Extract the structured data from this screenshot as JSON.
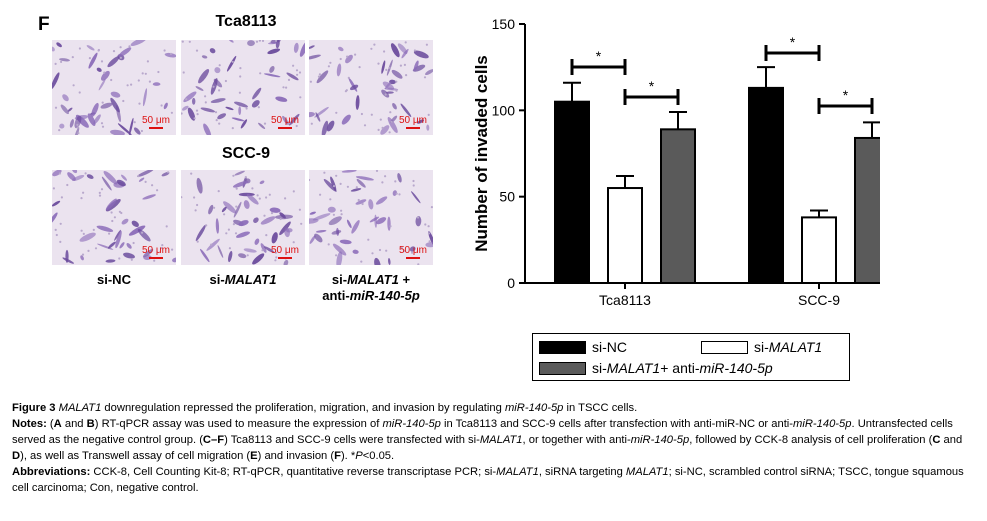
{
  "figure": {
    "panel_letter": "F",
    "microscopy": {
      "rows": [
        {
          "title": "Tca8113",
          "scale_label": "50 μm"
        },
        {
          "title": "SCC-9",
          "scale_label": "50 μm"
        }
      ],
      "columns": [
        {
          "line1_pre": "si-NC",
          "line1_italic": "",
          "line1_post": "",
          "line2_pre": "",
          "line2_italic": ""
        },
        {
          "line1_pre": "si-",
          "line1_italic": "MALAT1",
          "line1_post": "",
          "line2_pre": "",
          "line2_italic": ""
        },
        {
          "line1_pre": "si-",
          "line1_italic": "MALAT1",
          "line1_post": " +",
          "line2_pre": "anti-",
          "line2_italic": "miR-140-5p"
        }
      ]
    },
    "legend": {
      "si_nc": "si-NC",
      "si_malat1_pre": "si-",
      "si_malat1_italic": "MALAT1",
      "combo_pre": "si-",
      "combo_italic1": "MALAT1",
      "combo_mid": " + anti-",
      "combo_italic2": "miR-140-5p"
    }
  },
  "chart_data": {
    "type": "bar",
    "categories": [
      "Tca8113",
      "SCC-9"
    ],
    "series": [
      {
        "name": "si-NC",
        "values": [
          105,
          113
        ],
        "errors": [
          11,
          12
        ],
        "color": "#000000"
      },
      {
        "name": "si-MALAT1",
        "values": [
          55,
          38
        ],
        "errors": [
          7,
          4
        ],
        "color": "#ffffff"
      },
      {
        "name": "si-MALAT1 + anti-miR-140-5p",
        "values": [
          89,
          84
        ],
        "errors": [
          10,
          9
        ],
        "color": "#5a5a5a"
      }
    ],
    "ylabel": "Number of invaded cells",
    "xlabel": "",
    "ylim": [
      0,
      150
    ],
    "yticks": [
      0,
      50,
      100,
      150
    ],
    "significance": [
      {
        "category": "Tca8113",
        "between": [
          "si-NC",
          "si-MALAT1"
        ],
        "label": "*"
      },
      {
        "category": "Tca8113",
        "between": [
          "si-MALAT1",
          "si-MALAT1 + anti-miR-140-5p"
        ],
        "label": "*"
      },
      {
        "category": "SCC-9",
        "between": [
          "si-NC",
          "si-MALAT1"
        ],
        "label": "*"
      },
      {
        "category": "SCC-9",
        "between": [
          "si-MALAT1",
          "si-MALAT1 + anti-miR-140-5p"
        ],
        "label": "*"
      }
    ],
    "legend_position": "bottom"
  },
  "caption": {
    "title_label": "Figure 3",
    "title_italic1": "MALAT1",
    "title_text1": " downregulation repressed the proliferation, migration, and invasion by regulating ",
    "title_italic2": "miR-140-5p",
    "title_text2": " in TSCC cells.",
    "notes_label": "Notes:",
    "n1": " (",
    "n_A": "A",
    "n2": " and ",
    "n_B": "B",
    "n3": ") RT-qPCR assay was used to measure the expression of ",
    "n_i1": "miR-140-5p",
    "n4": " in Tca8113 and SCC-9 cells after transfection with anti-miR-NC or anti-",
    "n_i2": "miR-140-5p",
    "n5": ". Untransfected cells served as the negative control group. (",
    "n_CF": "C–F",
    "n6": ") Tca8113 and SCC-9 cells were transfected with si-",
    "n_i3": "MALAT1",
    "n7": ", or together with anti-",
    "n_i4": "miR-140-5p",
    "n8": ", followed by CCK-8 analysis of cell proliferation (",
    "n_C": "C",
    "n9": " and ",
    "n_D": "D",
    "n10": "), as well as Transwell assay of cell migration (",
    "n_E": "E",
    "n11": ") and invasion (",
    "n_F": "F",
    "n12": "). *",
    "n_P": "P",
    "n13": "<0.05.",
    "abbr_label": "Abbreviations:",
    "a1": " CCK-8, Cell Counting Kit-8; RT-qPCR, quantitative reverse transcriptase PCR; si-",
    "a_i1": "MALAT1",
    "a2": ", siRNA targeting ",
    "a_i2": "MALAT1",
    "a3": "; si-NC, scrambled control siRNA; TSCC, tongue squamous cell carcinoma; Con, negative control."
  }
}
